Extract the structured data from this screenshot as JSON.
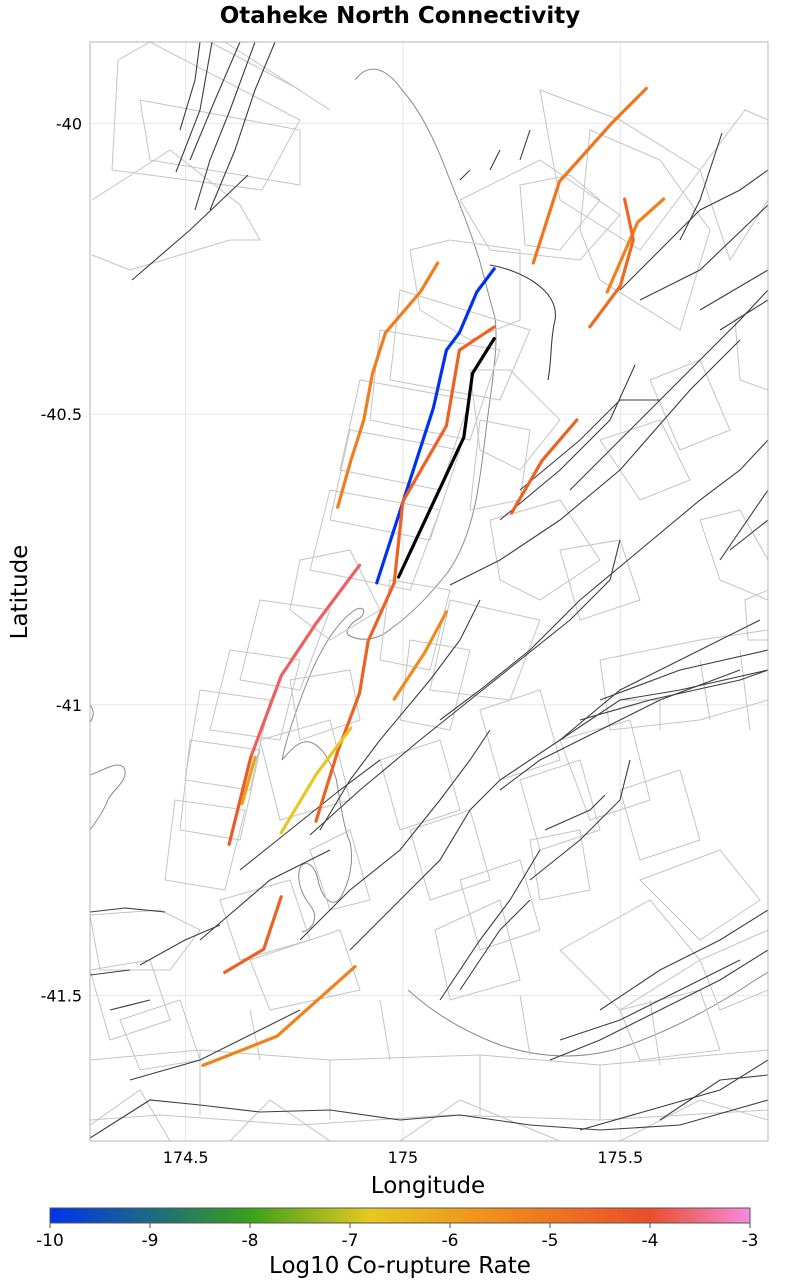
{
  "title": "Otaheke North Connectivity",
  "xlabel": "Longitude",
  "ylabel": "Latitude",
  "colorbar": {
    "label": "Log10 Co-rupture Rate",
    "min": -10,
    "max": -3,
    "ticks": [
      "-10",
      "-9",
      "-8",
      "-7",
      "-6",
      "-5",
      "-4",
      "-3"
    ],
    "stops": [
      {
        "value": -10,
        "color": "#0033ee"
      },
      {
        "value": -8,
        "color": "#3aa01a"
      },
      {
        "value": -6.8,
        "color": "#e6c820"
      },
      {
        "value": -5.5,
        "color": "#f08a1a"
      },
      {
        "value": -4,
        "color": "#ea4e2a"
      },
      {
        "value": -3,
        "color": "#f58ae0"
      }
    ]
  },
  "chart_data": {
    "type": "map",
    "title": "Otaheke North Connectivity",
    "xlabel": "Longitude",
    "ylabel": "Latitude",
    "xlim": [
      174.28,
      175.84
    ],
    "ylim": [
      -41.75,
      -39.86
    ],
    "xticks": [
      {
        "value": 174.5,
        "label": "174.5"
      },
      {
        "value": 175,
        "label": "175"
      },
      {
        "value": 175.5,
        "label": "175.5"
      }
    ],
    "yticks": [
      {
        "value": -40,
        "label": "-40"
      },
      {
        "value": -40.5,
        "label": "-40.5"
      },
      {
        "value": -41,
        "label": "-41"
      },
      {
        "value": -41.5,
        "label": "-41.5"
      }
    ],
    "target_fault": {
      "name": "Otaheke North",
      "color": "#000000",
      "points": [
        [
          174.99,
          -40.78
        ],
        [
          175.14,
          -40.54
        ],
        [
          175.16,
          -40.43
        ],
        [
          175.21,
          -40.37
        ]
      ]
    },
    "ruptures": [
      {
        "log10_rate": -10,
        "points": [
          [
            174.94,
            -40.79
          ],
          [
            175.07,
            -40.49
          ],
          [
            175.1,
            -40.39
          ],
          [
            175.13,
            -40.36
          ],
          [
            175.17,
            -40.29
          ],
          [
            175.21,
            -40.25
          ]
        ]
      },
      {
        "log10_rate": -4.5,
        "points": [
          [
            174.8,
            -41.2
          ],
          [
            174.85,
            -41.08
          ],
          [
            174.9,
            -40.98
          ],
          [
            174.92,
            -40.89
          ],
          [
            174.98,
            -40.79
          ]
        ]
      },
      {
        "log10_rate": -4.5,
        "points": [
          [
            174.98,
            -40.79
          ],
          [
            175.0,
            -40.65
          ],
          [
            175.1,
            -40.52
          ],
          [
            175.13,
            -40.39
          ],
          [
            175.21,
            -40.35
          ]
        ]
      },
      {
        "log10_rate": -5.2,
        "points": [
          [
            174.85,
            -40.66
          ],
          [
            174.88,
            -40.58
          ],
          [
            174.91,
            -40.51
          ],
          [
            174.93,
            -40.43
          ],
          [
            174.96,
            -40.36
          ],
          [
            175.04,
            -40.29
          ],
          [
            175.08,
            -40.24
          ]
        ]
      },
      {
        "log10_rate": -5.0,
        "points": [
          [
            175.3,
            -40.24
          ],
          [
            175.36,
            -40.1
          ],
          [
            175.42,
            -40.05
          ],
          [
            175.48,
            -40.0
          ],
          [
            175.56,
            -39.94
          ]
        ]
      },
      {
        "log10_rate": -5.3,
        "points": [
          [
            175.47,
            -40.29
          ],
          [
            175.54,
            -40.17
          ],
          [
            175.6,
            -40.13
          ]
        ]
      },
      {
        "log10_rate": -4.7,
        "points": [
          [
            175.43,
            -40.35
          ],
          [
            175.5,
            -40.28
          ],
          [
            175.53,
            -40.2
          ],
          [
            175.51,
            -40.13
          ]
        ]
      },
      {
        "log10_rate": -4.5,
        "points": [
          [
            175.25,
            -40.67
          ],
          [
            175.32,
            -40.58
          ],
          [
            175.4,
            -40.51
          ]
        ]
      },
      {
        "log10_rate": -5.5,
        "points": [
          [
            174.98,
            -40.99
          ],
          [
            175.05,
            -40.91
          ],
          [
            175.1,
            -40.84
          ]
        ]
      },
      {
        "log10_rate": -6.8,
        "points": [
          [
            174.72,
            -41.22
          ],
          [
            174.8,
            -41.12
          ],
          [
            174.88,
            -41.04
          ]
        ]
      },
      {
        "log10_rate": -3.7,
        "points": [
          [
            174.65,
            -41.09
          ],
          [
            174.72,
            -40.95
          ],
          [
            174.8,
            -40.86
          ],
          [
            174.9,
            -40.76
          ]
        ]
      },
      {
        "log10_rate": -4.3,
        "points": [
          [
            174.6,
            -41.24
          ],
          [
            174.65,
            -41.09
          ]
        ]
      },
      {
        "log10_rate": -6.0,
        "points": [
          [
            174.63,
            -41.17
          ],
          [
            174.66,
            -41.09
          ]
        ]
      },
      {
        "log10_rate": -4.5,
        "points": [
          [
            174.59,
            -41.46
          ],
          [
            174.68,
            -41.42
          ],
          [
            174.72,
            -41.33
          ]
        ]
      },
      {
        "log10_rate": -5.3,
        "points": [
          [
            174.54,
            -41.62
          ],
          [
            174.71,
            -41.57
          ],
          [
            174.89,
            -41.45
          ]
        ]
      }
    ]
  }
}
